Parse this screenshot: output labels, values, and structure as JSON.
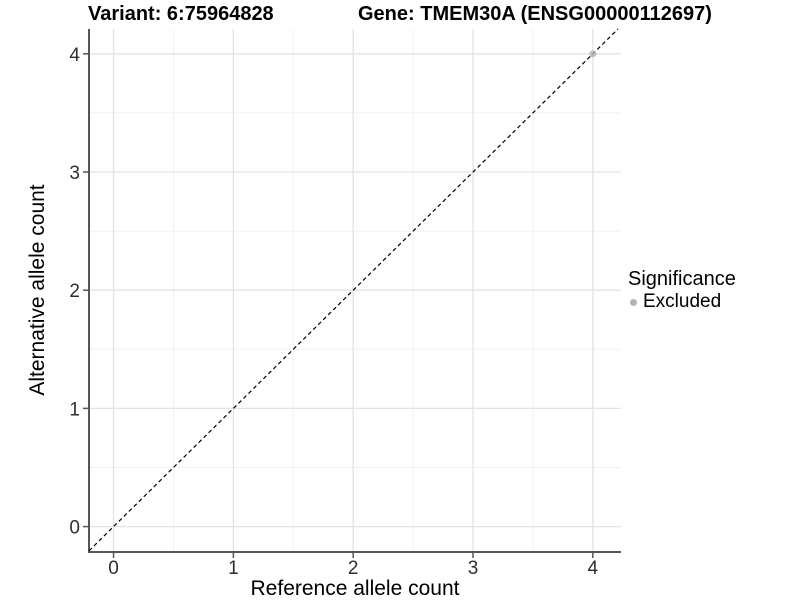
{
  "chart_data": {
    "type": "scatter",
    "titles": {
      "variant": "Variant: 6:75964828",
      "gene": "Gene: TMEM30A (ENSG00000112697)"
    },
    "xlabel": "Reference allele count",
    "ylabel": "Alternative allele count",
    "xlim": [
      -0.205,
      4.235
    ],
    "ylim": [
      -0.215,
      4.21
    ],
    "x_ticks": [
      0,
      1,
      2,
      3,
      4
    ],
    "x_tick_labels": [
      "0",
      "1",
      "2",
      "3",
      "4"
    ],
    "y_ticks": [
      0,
      1,
      2,
      3,
      4
    ],
    "y_tick_labels": [
      "0",
      "1",
      "2",
      "3",
      "4"
    ],
    "x_minor_ticks": [
      0.5,
      1.5,
      2.5,
      3.5
    ],
    "y_minor_ticks": [
      0.5,
      1.5,
      2.5,
      3.5
    ],
    "grid": {
      "show": true,
      "major_color": "#e3e3e3",
      "minor_color": "#f1f1f1"
    },
    "axis_color": "#565656",
    "tick_label_color": "#2e2e2e",
    "identity_line": {
      "style": "dashed",
      "color": "#000000",
      "slope": 1,
      "intercept": 0,
      "from": -0.205,
      "to": 4.21
    },
    "series": [
      {
        "name": "Excluded",
        "color": "#b3b3b3",
        "opacity": 0.85,
        "points": [
          {
            "x": 4,
            "y": 4
          }
        ]
      }
    ],
    "legend": {
      "title": "Significance",
      "position": "right",
      "entries": [
        {
          "label": "Excluded",
          "color": "#b3b3b3"
        }
      ]
    }
  }
}
